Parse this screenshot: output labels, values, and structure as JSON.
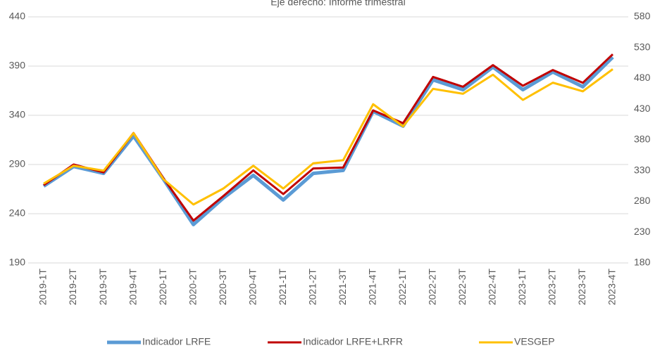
{
  "chart_data": {
    "type": "line",
    "title": "Eje derecho: Informe trimestral",
    "categories": [
      "2019-1T",
      "2019-2T",
      "2019-3T",
      "2019-4T",
      "2020-1T",
      "2020-2T",
      "2020-3T",
      "2020-4T",
      "2021-1T",
      "2021-2T",
      "2021-3T",
      "2021-4T",
      "2022-1T",
      "2022-2T",
      "2022-3T",
      "2022-4T",
      "2023-1T",
      "2023-2T",
      "2023-3T",
      "2023-4T"
    ],
    "series": [
      {
        "name": "Indicador LRFE",
        "color": "#5b9bd5",
        "values": [
          268,
          288,
          281,
          319,
          275,
          229,
          256,
          279,
          254,
          281,
          284,
          344,
          329,
          376,
          366,
          389,
          366,
          384,
          369,
          399
        ]
      },
      {
        "name": "Indicador LRFE+LRFR",
        "color": "#c00000",
        "values": [
          269,
          290,
          282,
          322,
          276,
          233,
          258,
          284,
          260,
          286,
          287,
          345,
          332,
          379,
          369,
          391,
          370,
          386,
          373,
          402
        ]
      },
      {
        "name": "VESGEP",
        "color": "#ffc000",
        "axis": "y2",
        "values": [
          309,
          338,
          330,
          391,
          316,
          275,
          301,
          338,
          301,
          342,
          347,
          438,
          402,
          463,
          455,
          486,
          445,
          473,
          459,
          495
        ]
      }
    ],
    "ylim": [
      190,
      440
    ],
    "yticks": [
      190,
      240,
      290,
      340,
      390,
      440
    ],
    "y2lim": [
      180,
      580
    ],
    "y2ticks": [
      180,
      230,
      280,
      330,
      380,
      430,
      480,
      530,
      580
    ],
    "grid": true,
    "legend": "bottom"
  }
}
